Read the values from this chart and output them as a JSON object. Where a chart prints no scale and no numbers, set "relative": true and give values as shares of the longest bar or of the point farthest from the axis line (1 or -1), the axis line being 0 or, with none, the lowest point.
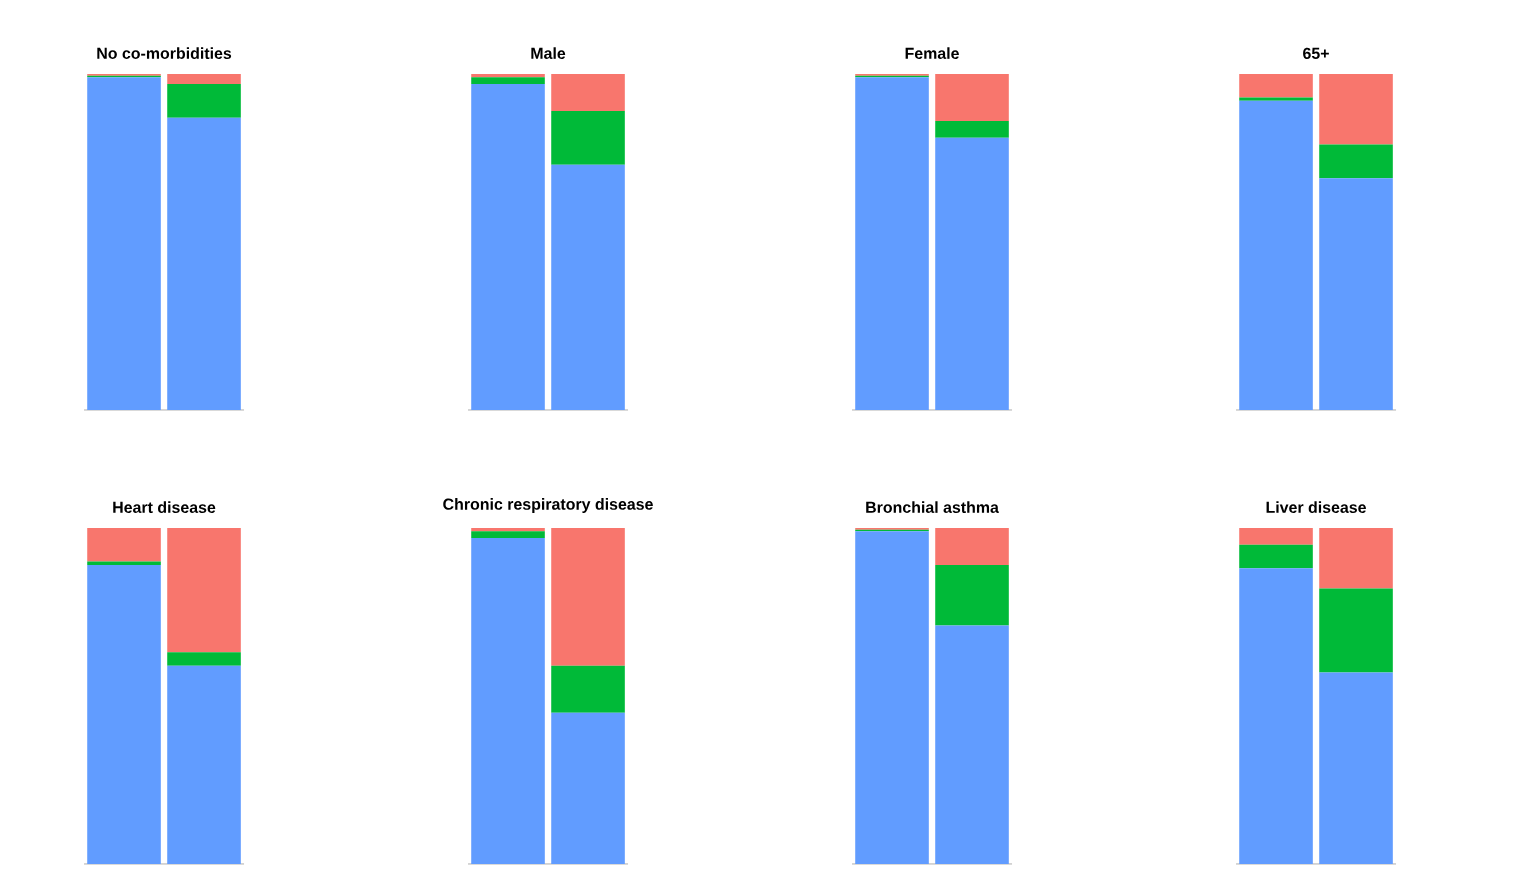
{
  "chart_data": [
    {
      "type": "bar",
      "title": "No co-morbidities",
      "stacked": true,
      "relative": true,
      "categories": [
        null,
        null
      ],
      "series": [
        {
          "color": "#619cff",
          "values": [
            0.99,
            0.87
          ]
        },
        {
          "color": "#00ba38",
          "values": [
            0.005,
            0.1
          ]
        },
        {
          "color": "#f8766d",
          "values": [
            0.005,
            0.03
          ]
        }
      ]
    },
    {
      "type": "bar",
      "title": "Male",
      "stacked": true,
      "relative": true,
      "categories": [
        null,
        null
      ],
      "series": [
        {
          "color": "#619cff",
          "values": [
            0.97,
            0.73
          ]
        },
        {
          "color": "#00ba38",
          "values": [
            0.02,
            0.16
          ]
        },
        {
          "color": "#f8766d",
          "values": [
            0.01,
            0.11
          ]
        }
      ]
    },
    {
      "type": "bar",
      "title": "Female",
      "stacked": true,
      "relative": true,
      "categories": [
        null,
        null
      ],
      "series": [
        {
          "color": "#619cff",
          "values": [
            0.99,
            0.81
          ]
        },
        {
          "color": "#00ba38",
          "values": [
            0.005,
            0.05
          ]
        },
        {
          "color": "#f8766d",
          "values": [
            0.005,
            0.14
          ]
        }
      ]
    },
    {
      "type": "bar",
      "title": "65+",
      "stacked": true,
      "relative": true,
      "categories": [
        null,
        null
      ],
      "series": [
        {
          "color": "#619cff",
          "values": [
            0.92,
            0.69
          ]
        },
        {
          "color": "#00ba38",
          "values": [
            0.01,
            0.1
          ]
        },
        {
          "color": "#f8766d",
          "values": [
            0.07,
            0.21
          ]
        }
      ]
    },
    {
      "type": "bar",
      "title": "Heart disease",
      "stacked": true,
      "relative": true,
      "categories": [
        null,
        null
      ],
      "series": [
        {
          "color": "#619cff",
          "values": [
            0.89,
            0.59
          ]
        },
        {
          "color": "#00ba38",
          "values": [
            0.01,
            0.04
          ]
        },
        {
          "color": "#f8766d",
          "values": [
            0.1,
            0.37
          ]
        }
      ]
    },
    {
      "type": "bar",
      "title": "Chronic respiratory disease",
      "stacked": true,
      "relative": true,
      "categories": [
        null,
        null
      ],
      "series": [
        {
          "color": "#619cff",
          "values": [
            0.97,
            0.45
          ]
        },
        {
          "color": "#00ba38",
          "values": [
            0.02,
            0.14
          ]
        },
        {
          "color": "#f8766d",
          "values": [
            0.01,
            0.41
          ]
        }
      ]
    },
    {
      "type": "bar",
      "title": "Bronchial asthma",
      "stacked": true,
      "relative": true,
      "categories": [
        null,
        null
      ],
      "series": [
        {
          "color": "#619cff",
          "values": [
            0.99,
            0.71
          ]
        },
        {
          "color": "#00ba38",
          "values": [
            0.005,
            0.18
          ]
        },
        {
          "color": "#f8766d",
          "values": [
            0.005,
            0.11
          ]
        }
      ]
    },
    {
      "type": "bar",
      "title": "Liver disease",
      "stacked": true,
      "relative": true,
      "categories": [
        null,
        null
      ],
      "series": [
        {
          "color": "#619cff",
          "values": [
            0.88,
            0.57
          ]
        },
        {
          "color": "#00ba38",
          "values": [
            0.07,
            0.25
          ]
        },
        {
          "color": "#f8766d",
          "values": [
            0.05,
            0.18
          ]
        }
      ]
    }
  ]
}
